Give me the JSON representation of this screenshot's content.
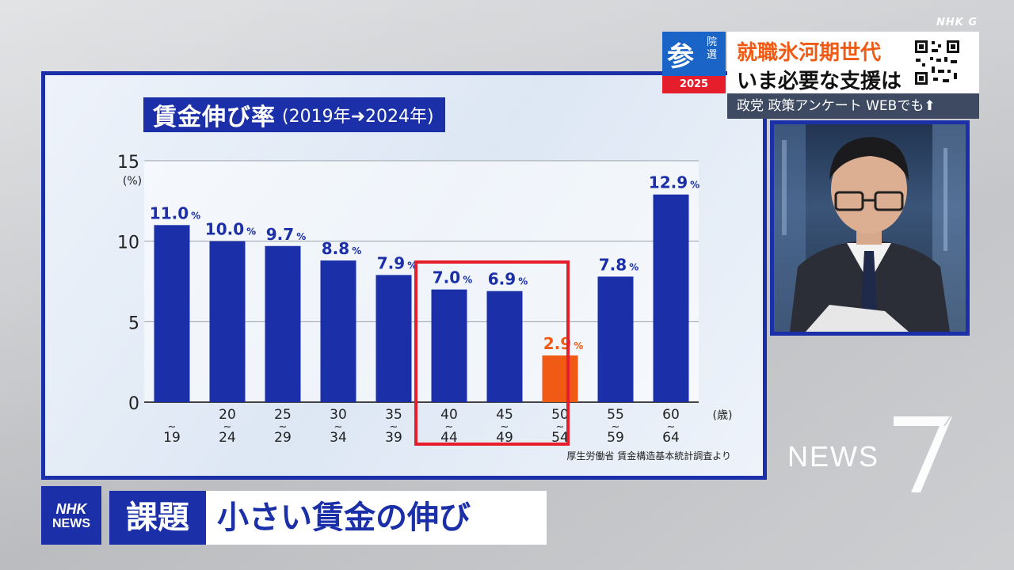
{
  "broadcaster": {
    "channel_tag": "NHK G"
  },
  "election": {
    "badge_kanji": "参",
    "badge_small": "院選",
    "year": "2025"
  },
  "headline": {
    "line1": "就職氷河期世代",
    "line2": "いま必要な支援は",
    "sub": "政党 政策アンケート WEBでも⬆"
  },
  "chart": {
    "title_main": "賃金伸び率",
    "title_sub": "(2019年➜2024年)",
    "source": "厚生労働省 賃金構造基本統計調査より"
  },
  "chart_data": {
    "type": "bar",
    "title": "賃金伸び率(2019年➜2024年)",
    "ylabel": "(%)",
    "x_unit": "(歳)",
    "ylim": [
      0,
      15
    ],
    "yticks": [
      0,
      5,
      10,
      15
    ],
    "categories": [
      {
        "top": "",
        "mid": "~",
        "bot": "19"
      },
      {
        "top": "20",
        "mid": "~",
        "bot": "24"
      },
      {
        "top": "25",
        "mid": "~",
        "bot": "29"
      },
      {
        "top": "30",
        "mid": "~",
        "bot": "34"
      },
      {
        "top": "35",
        "mid": "~",
        "bot": "39"
      },
      {
        "top": "40",
        "mid": "~",
        "bot": "44"
      },
      {
        "top": "45",
        "mid": "~",
        "bot": "49"
      },
      {
        "top": "50",
        "mid": "~",
        "bot": "54"
      },
      {
        "top": "55",
        "mid": "~",
        "bot": "59"
      },
      {
        "top": "60",
        "mid": "~",
        "bot": "64"
      }
    ],
    "values": [
      11.0,
      10.0,
      9.7,
      8.8,
      7.9,
      7.0,
      6.9,
      2.9,
      7.8,
      12.9
    ],
    "labels": [
      "11.0",
      "10.0",
      "9.7",
      "8.8",
      "7.9",
      "7.0",
      "6.9",
      "2.9",
      "7.8",
      "12.9"
    ],
    "value_suffix": "%",
    "highlight_index": 7,
    "colors": {
      "bar": "#1a2fa8",
      "highlight": "#f05a14",
      "box": "#e61d2b"
    }
  },
  "program": {
    "name": "NEWS"
  },
  "caption": {
    "logo_top": "NHK",
    "logo_bottom": "NEWS",
    "tag": "課題",
    "text": "小さい賃金の伸び"
  }
}
